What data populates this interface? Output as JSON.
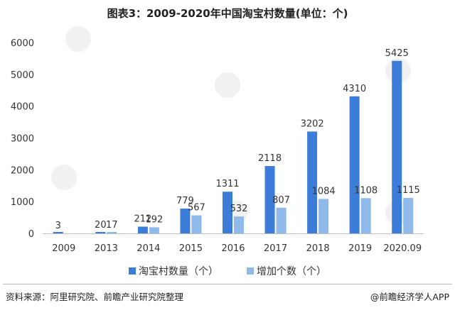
{
  "page": {
    "source": "资料来源：阿里研究院、前瞻产业研究院整理",
    "brand": "@前瞻经济学人APP"
  },
  "chart_data": {
    "type": "bar",
    "title": "图表3：2009-2020年中国淘宝村数量(单位：个)",
    "categories": [
      "2009",
      "2013",
      "2014",
      "2015",
      "2016",
      "2017",
      "2018",
      "2019",
      "2020.09"
    ],
    "series": [
      {
        "name": "淘宝村数量（个）",
        "color": "#3b7dd8",
        "values": [
          3,
          20,
          212,
          779,
          1311,
          2118,
          3202,
          4310,
          5425
        ],
        "labels": [
          "3",
          "20",
          "212",
          "779",
          "1311",
          "2118",
          "3202",
          "4310",
          "5425"
        ]
      },
      {
        "name": "增加个数（个）",
        "color": "#8fb9ea",
        "values": [
          null,
          17,
          192,
          567,
          532,
          807,
          1084,
          1108,
          1115
        ],
        "labels": [
          "",
          "17",
          "192",
          "567",
          "532",
          "807",
          "1084",
          "1108",
          "1115"
        ]
      }
    ],
    "ylim": [
      0,
      6000
    ],
    "yticks": [
      0,
      1000,
      2000,
      3000,
      4000,
      5000,
      6000
    ],
    "grid": false,
    "legend": "bottom-center"
  }
}
